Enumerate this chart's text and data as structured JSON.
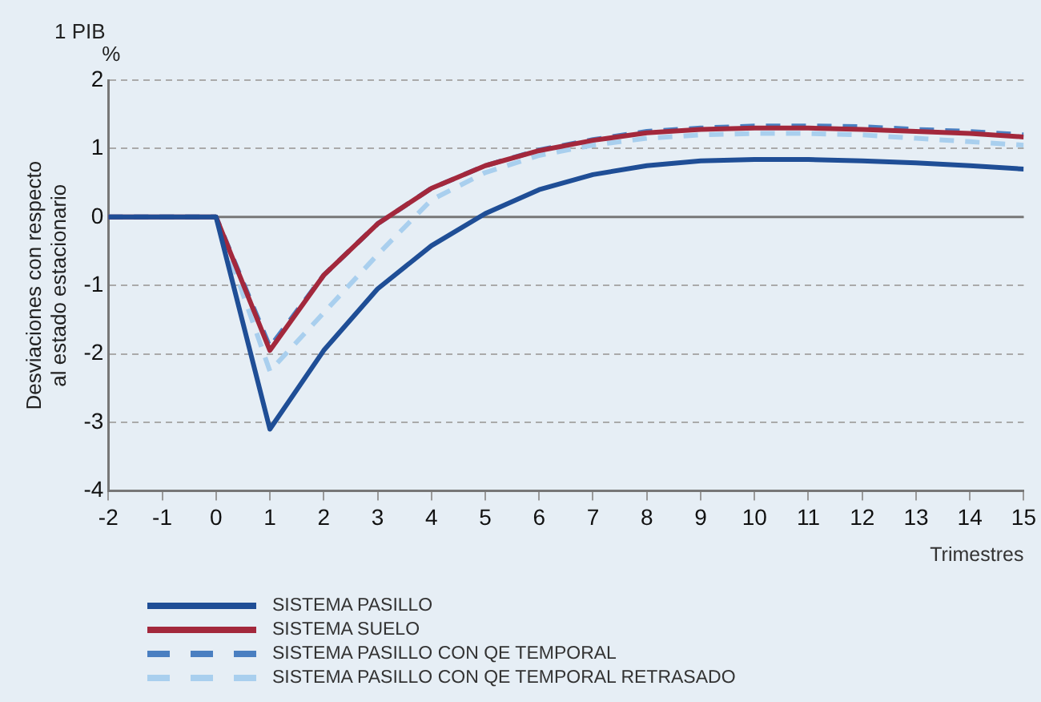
{
  "chart_data": {
    "type": "line",
    "title": "1 PIB",
    "ylabel": "Desviaciones con respecto\nal estado estacionario",
    "xlabel": "Trimestres",
    "annotations": [
      "%"
    ],
    "x": [
      -2,
      -1,
      0,
      1,
      2,
      3,
      4,
      5,
      6,
      7,
      8,
      9,
      10,
      11,
      12,
      13,
      14,
      15
    ],
    "xlim": [
      -2,
      15
    ],
    "xticks": [
      -2,
      -1,
      0,
      1,
      2,
      3,
      4,
      5,
      6,
      7,
      8,
      9,
      10,
      11,
      12,
      13,
      14,
      15
    ],
    "ylim": [
      -4,
      2
    ],
    "yticks": [
      -4,
      -3,
      -2,
      -1,
      0,
      1,
      2
    ],
    "grid": "y",
    "legend": "bottom",
    "marker": "none",
    "series": [
      {
        "name": "SISTEMA PASILLO",
        "color": "#1f4e96",
        "line_style": "solid",
        "values": [
          0,
          0,
          0,
          -3.1,
          -1.95,
          -1.05,
          -0.42,
          0.05,
          0.4,
          0.62,
          0.75,
          0.82,
          0.84,
          0.84,
          0.82,
          0.79,
          0.75,
          0.7
        ]
      },
      {
        "name": "SISTEMA SUELO",
        "color": "#a3283c",
        "line_style": "solid",
        "values": [
          0,
          0,
          0,
          -1.95,
          -0.85,
          -0.1,
          0.42,
          0.75,
          0.97,
          1.12,
          1.23,
          1.28,
          1.3,
          1.3,
          1.28,
          1.25,
          1.22,
          1.17
        ]
      },
      {
        "name": "SISTEMA PASILLO CON QE TEMPORAL",
        "color": "#4a7fc1",
        "line_style": "dashed",
        "values": [
          0,
          0,
          0,
          -1.9,
          -0.85,
          -0.1,
          0.42,
          0.75,
          0.98,
          1.13,
          1.25,
          1.3,
          1.33,
          1.33,
          1.32,
          1.28,
          1.25,
          1.2
        ]
      },
      {
        "name": "SISTEMA PASILLO CON QE TEMPORAL RETRASADO",
        "color": "#a9cfee",
        "line_style": "dashed",
        "values": [
          0,
          0,
          0,
          -2.25,
          -1.4,
          -0.55,
          0.25,
          0.65,
          0.9,
          1.05,
          1.15,
          1.2,
          1.22,
          1.22,
          1.2,
          1.15,
          1.1,
          1.05
        ]
      }
    ]
  }
}
